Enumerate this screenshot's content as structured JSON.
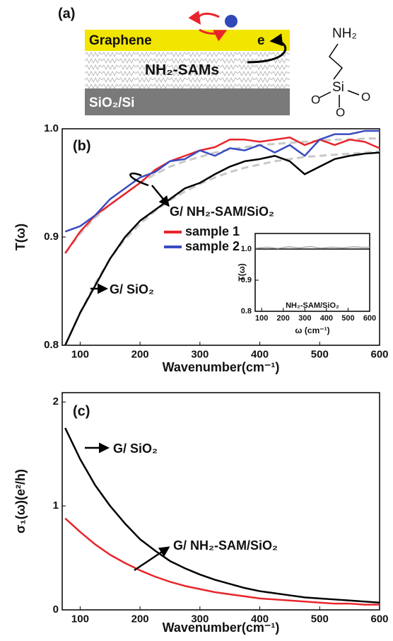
{
  "diagram": {
    "panel_label": "(a)",
    "graphene": "Graphene",
    "electron": "e",
    "sam": "NH₂-SAMs",
    "substrate": "SiO₂/Si",
    "molecule": {
      "amine": "NH₂",
      "silicon": "Si",
      "oxygens": [
        "O",
        "O",
        "O"
      ]
    }
  },
  "chart_data": [
    {
      "type": "line",
      "panel_label": "(b)",
      "ylabel": "T(ω)",
      "xlabel": "Wavenumber(cm⁻¹)",
      "xlim": [
        70,
        600
      ],
      "xticks": [
        100,
        200,
        300,
        400,
        500,
        600
      ],
      "ylim": [
        0.8,
        1.0
      ],
      "yticks": [
        0.8,
        0.9,
        {
          "value": 1,
          "label": "1.0"
        }
      ],
      "x": [
        75,
        100,
        125,
        150,
        175,
        200,
        225,
        250,
        275,
        300,
        325,
        350,
        375,
        400,
        425,
        450,
        475,
        500,
        525,
        550,
        575,
        600
      ],
      "series": [
        {
          "color": "#c8c8c8",
          "dash": true,
          "values": [
            0.885,
            0.903,
            0.918,
            0.93,
            0.94,
            0.95,
            0.958,
            0.965,
            0.97,
            0.974,
            0.978,
            0.981,
            0.983,
            0.985,
            0.986,
            0.987,
            0.988,
            0.989,
            0.99,
            0.99,
            0.991,
            0.991
          ]
        },
        {
          "name": "sample 1",
          "color": "#e8252b",
          "values": [
            0.885,
            0.905,
            0.92,
            0.93,
            0.94,
            0.95,
            0.962,
            0.97,
            0.975,
            0.98,
            0.983,
            0.99,
            0.99,
            0.988,
            0.99,
            0.992,
            0.985,
            0.99,
            0.985,
            0.99,
            0.988,
            0.982
          ]
        },
        {
          "name": "sample 2",
          "color": "#3a4cc0",
          "values": [
            0.905,
            0.91,
            0.92,
            0.935,
            0.945,
            0.955,
            0.96,
            0.97,
            0.972,
            0.98,
            0.975,
            0.982,
            0.98,
            0.985,
            0.978,
            0.985,
            0.975,
            0.99,
            0.995,
            0.995,
            0.998,
            0.998
          ]
        },
        {
          "color": "#c8c8c8",
          "dash": true,
          "values": [
            0.8,
            0.83,
            0.857,
            0.88,
            0.898,
            0.912,
            0.924,
            0.934,
            0.942,
            0.949,
            0.955,
            0.96,
            0.964,
            0.967,
            0.97,
            0.972,
            0.974,
            0.975,
            0.976,
            0.977,
            0.978,
            0.979
          ]
        },
        {
          "color": "#000000",
          "values": [
            0.8,
            0.83,
            0.855,
            0.88,
            0.9,
            0.915,
            0.925,
            0.935,
            0.945,
            0.95,
            0.958,
            0.965,
            0.97,
            0.972,
            0.975,
            0.97,
            0.958,
            0.965,
            0.972,
            0.975,
            0.977,
            0.978
          ]
        }
      ],
      "annotations": [
        "G/ NH₂-SAM/SiO₂",
        "G/ SiO₂"
      ]
    },
    {
      "type": "line",
      "title": "NH₂-SAM/SiO₂",
      "ylabel": "T(ω)",
      "xlabel": "ω (cm⁻¹)",
      "xlim": [
        70,
        600
      ],
      "xticks": [
        100,
        200,
        300,
        400,
        500,
        600
      ],
      "ylim": [
        0.8,
        1.05
      ],
      "yticks": [
        0.8,
        0.9,
        {
          "value": 1,
          "label": "1.0"
        }
      ],
      "x": [
        75,
        125,
        175,
        225,
        275,
        325,
        375,
        425,
        475,
        525,
        575,
        600
      ],
      "series": [
        {
          "color": "#000000",
          "values": [
            1,
            1,
            1,
            1,
            1,
            1,
            1,
            1,
            1,
            1,
            1,
            1
          ]
        },
        {
          "color": "#aaaaaa",
          "values": [
            1.003,
            1.006,
            1.002,
            1.007,
            1.004,
            1.008,
            1.003,
            1.006,
            1.004,
            1.007,
            1.005,
            1.006
          ]
        }
      ]
    },
    {
      "type": "line",
      "panel_label": "(c)",
      "ylabel": "σ₁(ω)(e²/h)",
      "xlabel": "Wavenumber(cm⁻¹)",
      "xlim": [
        70,
        600
      ],
      "xticks": [
        100,
        200,
        300,
        400,
        500,
        600
      ],
      "ylim": [
        0,
        2.09
      ],
      "yticks": [
        0,
        1,
        2
      ],
      "x": [
        75,
        100,
        125,
        150,
        175,
        200,
        225,
        250,
        275,
        300,
        325,
        350,
        375,
        400,
        425,
        450,
        475,
        500,
        525,
        550,
        575,
        600
      ],
      "series": [
        {
          "color": "#000000",
          "values": [
            1.75,
            1.45,
            1.2,
            1.0,
            0.83,
            0.68,
            0.57,
            0.47,
            0.4,
            0.34,
            0.29,
            0.25,
            0.21,
            0.18,
            0.16,
            0.14,
            0.12,
            0.11,
            0.1,
            0.09,
            0.08,
            0.07
          ]
        },
        {
          "color": "#e8252b",
          "values": [
            0.88,
            0.75,
            0.63,
            0.53,
            0.45,
            0.38,
            0.32,
            0.27,
            0.23,
            0.2,
            0.17,
            0.15,
            0.13,
            0.11,
            0.1,
            0.09,
            0.08,
            0.07,
            0.06,
            0.06,
            0.05,
            0.05
          ]
        }
      ],
      "annotations": [
        "G/ SiO₂",
        "G/ NH₂-SAM/SiO₂"
      ]
    }
  ]
}
